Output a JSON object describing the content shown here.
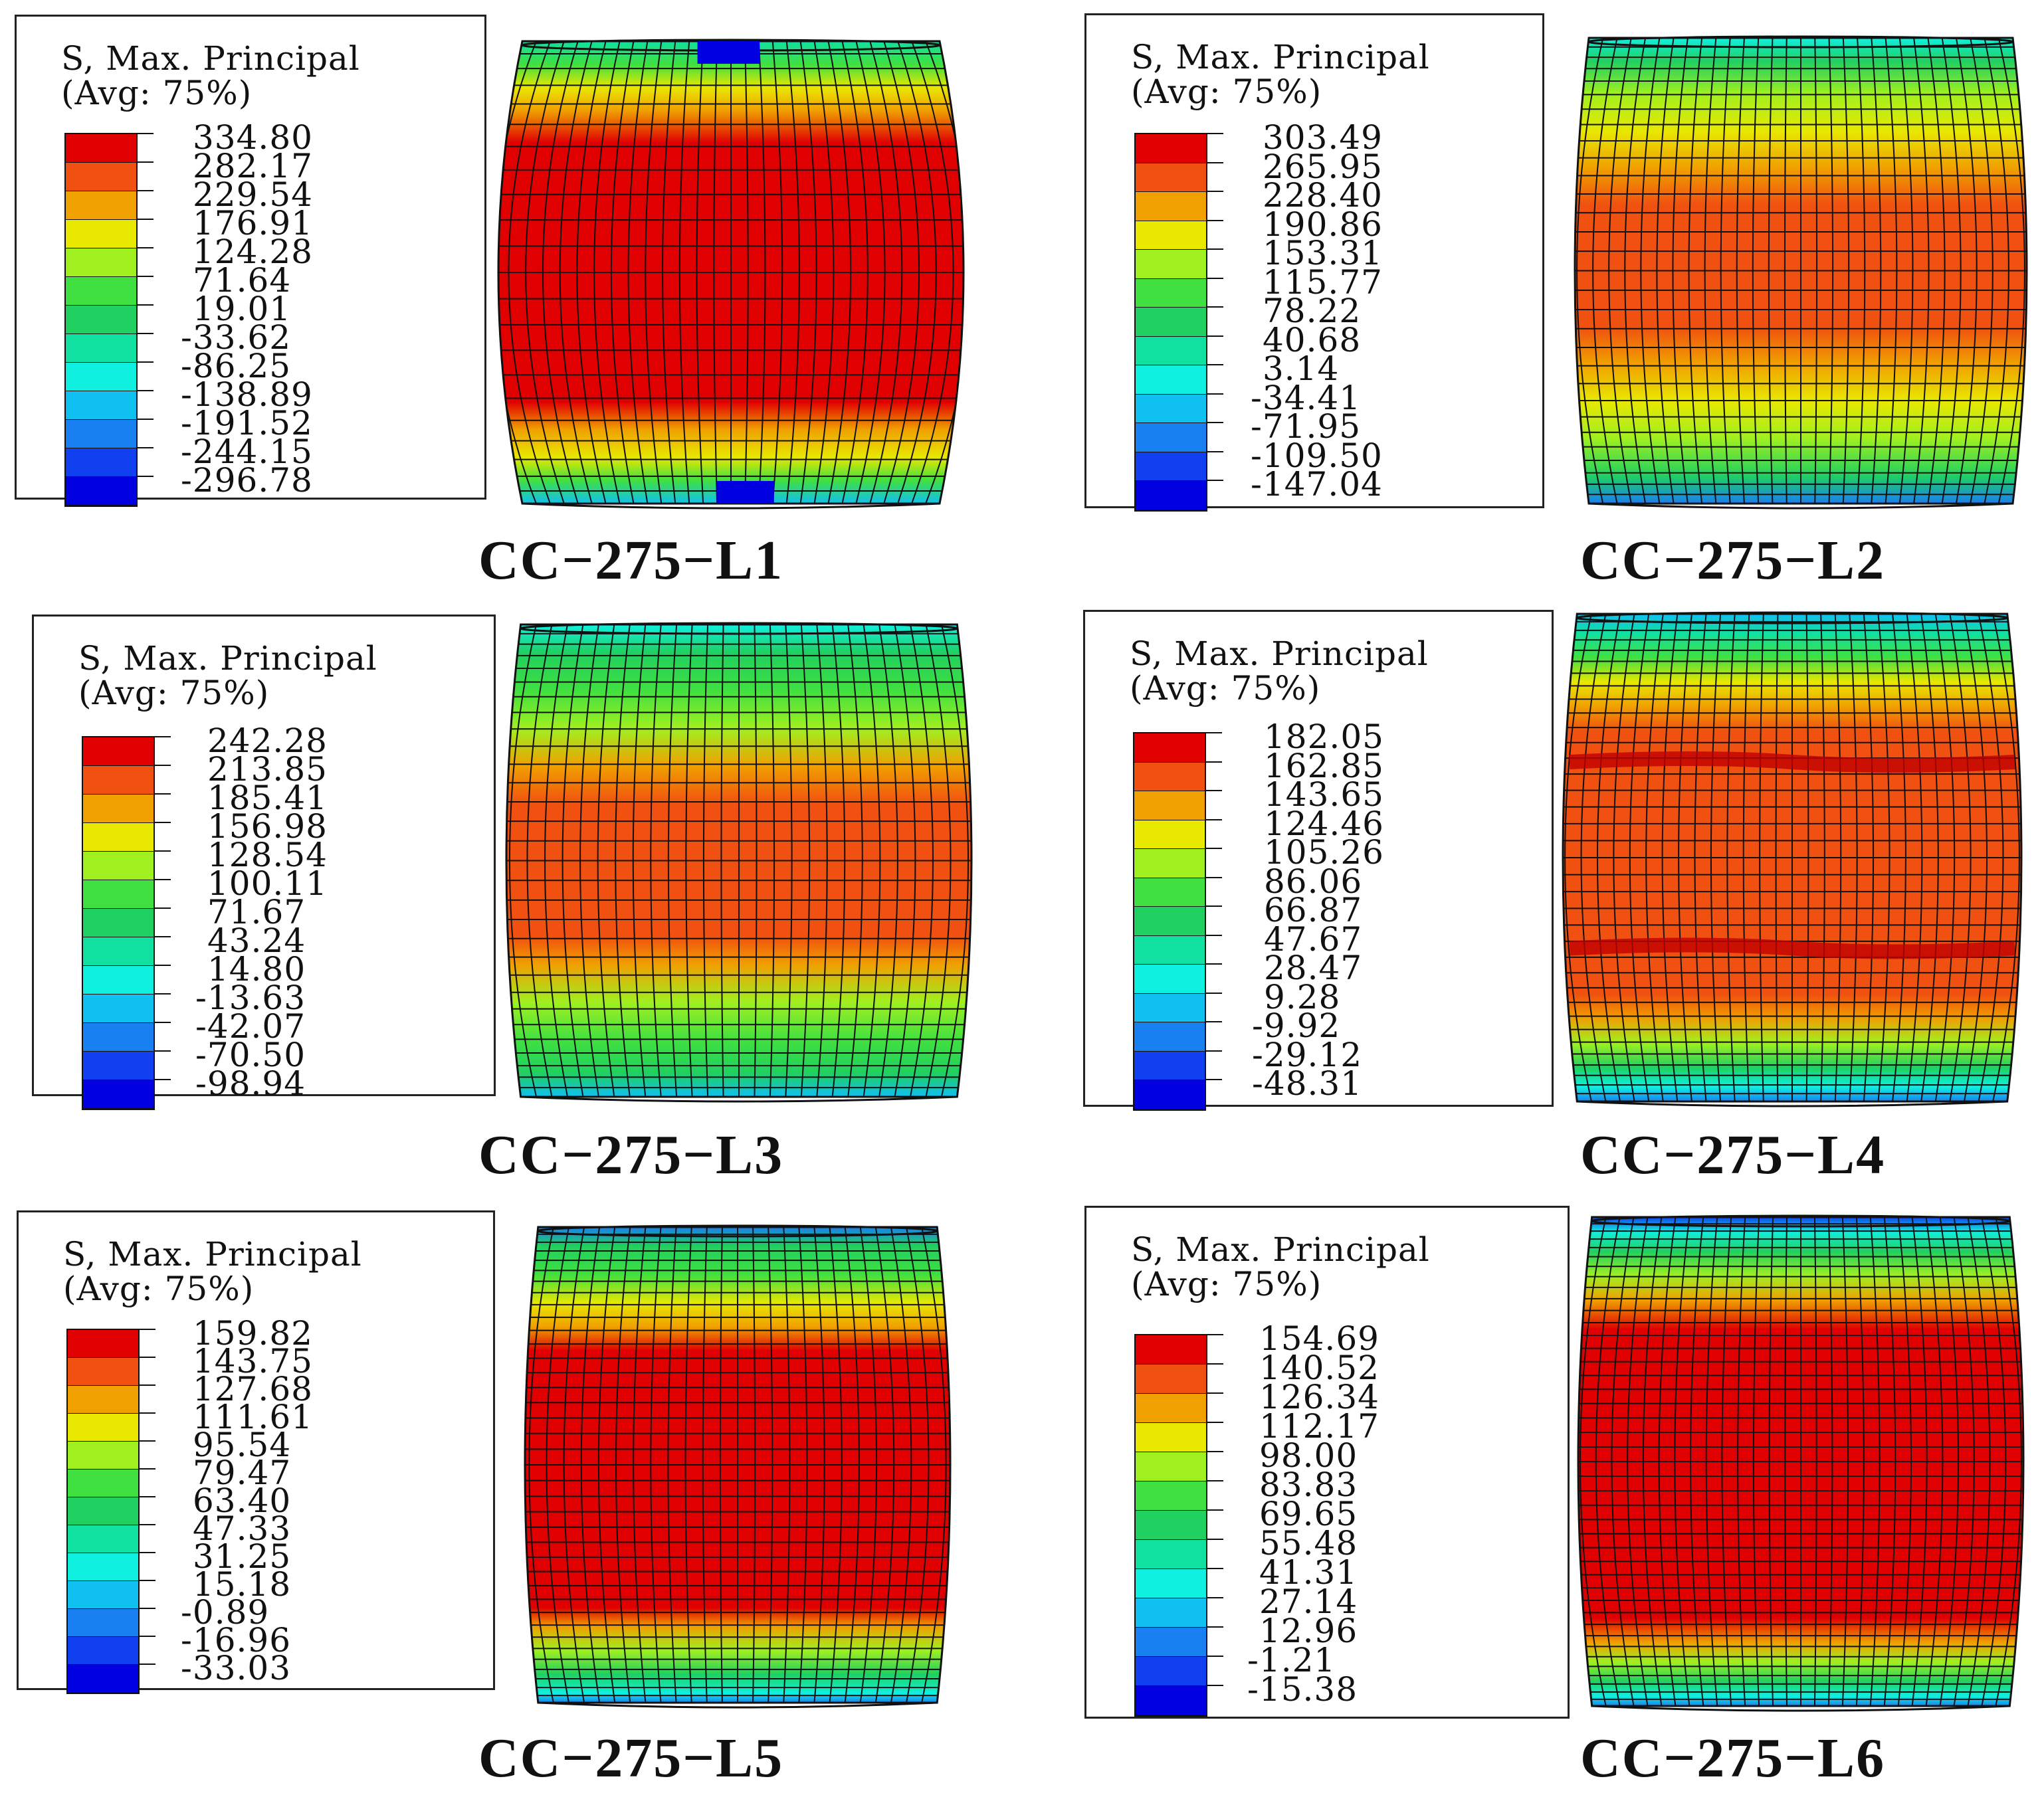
{
  "legend_title": "S, Max. Principal\n(Avg: 75%)",
  "palette": [
    "#e00000",
    "#f05010",
    "#f0a000",
    "#e8e800",
    "#a0f020",
    "#40e040",
    "#20d060",
    "#10e0a0",
    "#10f0e0",
    "#10c0f0",
    "#1880f0",
    "#1040f0",
    "#0000e0"
  ],
  "panels": [
    {
      "caption": "CC−275−L1",
      "values": [
        "334.80",
        "282.17",
        "229.54",
        "176.91",
        "124.28",
        "71.64",
        "19.01",
        "-33.62",
        "-86.25",
        "-138.89",
        "-191.52",
        "-244.15",
        "-296.78"
      ]
    },
    {
      "caption": "CC−275−L2",
      "values": [
        "303.49",
        "265.95",
        "228.40",
        "190.86",
        "153.31",
        "115.77",
        "78.22",
        "40.68",
        "3.14",
        "-34.41",
        "-71.95",
        "-109.50",
        "-147.04"
      ]
    },
    {
      "caption": "CC−275−L3",
      "values": [
        "242.28",
        "213.85",
        "185.41",
        "156.98",
        "128.54",
        "100.11",
        "71.67",
        "43.24",
        "14.80",
        "-13.63",
        "-42.07",
        "-70.50",
        "-98.94"
      ]
    },
    {
      "caption": "CC−275−L4",
      "values": [
        "182.05",
        "162.85",
        "143.65",
        "124.46",
        "105.26",
        "86.06",
        "66.87",
        "47.67",
        "28.47",
        "9.28",
        "-9.92",
        "-29.12",
        "-48.31"
      ]
    },
    {
      "caption": "CC−275−L5",
      "values": [
        "159.82",
        "143.75",
        "127.68",
        "111.61",
        "95.54",
        "79.47",
        "63.40",
        "47.33",
        "31.25",
        "15.18",
        "-0.89",
        "-16.96",
        "-33.03"
      ]
    },
    {
      "caption": "CC−275−L6",
      "values": [
        "154.69",
        "140.52",
        "126.34",
        "112.17",
        "98.00",
        "83.83",
        "69.65",
        "55.48",
        "41.31",
        "27.14",
        "12.96",
        "-1.21",
        "-15.38"
      ]
    }
  ]
}
